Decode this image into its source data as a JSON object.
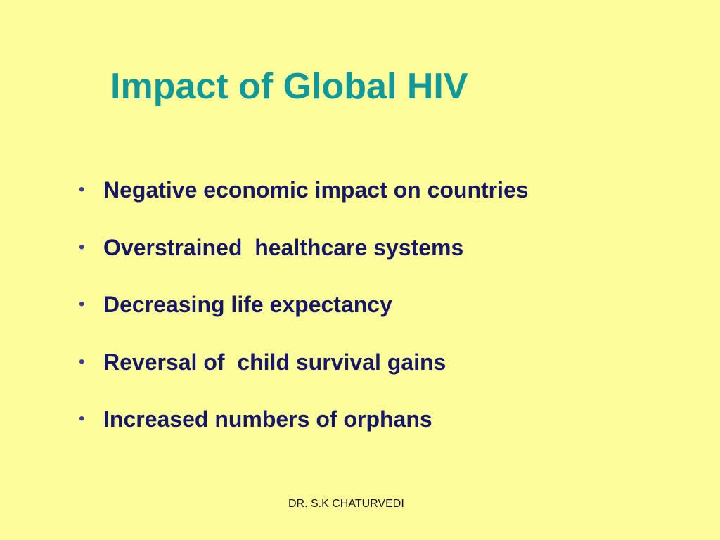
{
  "title": "Impact of Global HIV",
  "bullets": [
    "Negative economic impact on countries",
    "Overstrained  healthcare systems",
    "Decreasing life expectancy",
    "Reversal of  child survival gains",
    "Increased numbers of orphans"
  ],
  "footer": "DR. S.K CHATURVEDI"
}
